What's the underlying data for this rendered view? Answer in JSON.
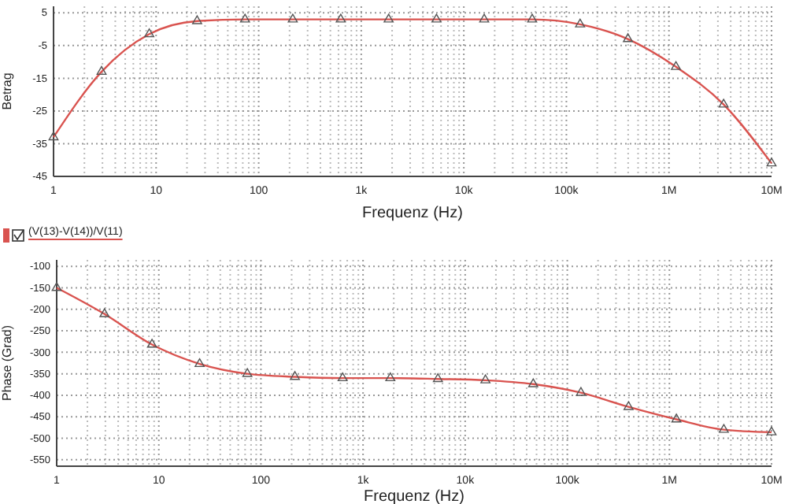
{
  "chart_data": [
    {
      "type": "line",
      "xlabel": "Frequenz (Hz)",
      "ylabel": "Betrag",
      "log": "x",
      "grid": true,
      "marker": "triangle",
      "line_style": "solid",
      "x": [
        1,
        2.94,
        8.58,
        25.1,
        73.6,
        215,
        631,
        1850,
        5410,
        15800,
        46400,
        136000,
        398000,
        1170000,
        3410000,
        10000000
      ],
      "series": [
        {
          "color": "#d9534f",
          "values": [
            -33,
            -13,
            -1.5,
            2.5,
            3,
            3,
            3,
            3,
            3,
            3,
            3,
            1.5,
            -3,
            -11.5,
            -23,
            -41
          ]
        }
      ],
      "xlim": [
        1,
        10000000
      ],
      "xticks": [
        1,
        10,
        100,
        {
          "value": 1000,
          "label": "1k"
        },
        {
          "value": 10000,
          "label": "10k"
        },
        {
          "value": 100000,
          "label": "100k"
        },
        {
          "value": 1000000,
          "label": "1M"
        },
        {
          "value": 10000000,
          "label": "10M"
        }
      ],
      "ylim": [
        -45,
        7
      ],
      "yticks": [
        5,
        -5,
        -15,
        -25,
        -35,
        -45
      ]
    },
    {
      "type": "line",
      "xlabel": "Frequenz (Hz)",
      "ylabel": "Phase (Grad)",
      "log": "x",
      "grid": true,
      "marker": "triangle",
      "line_style": "solid",
      "legend": "top left",
      "x": [
        1,
        2.94,
        8.58,
        25.1,
        73.6,
        215,
        631,
        1850,
        5410,
        15800,
        46400,
        136000,
        398000,
        1170000,
        3410000,
        10000000
      ],
      "series": [
        {
          "name": "(V(13)-V(14))/V(11)",
          "color": "#d9534f",
          "values": [
            -150,
            -211,
            -282,
            -327,
            -350,
            -357,
            -360,
            -360,
            -362,
            -365,
            -374,
            -394,
            -427,
            -456,
            -480,
            -486
          ]
        }
      ],
      "xlim": [
        1,
        10000000
      ],
      "xticks": [
        1,
        10,
        100,
        {
          "value": 1000,
          "label": "1k"
        },
        {
          "value": 10000,
          "label": "10k"
        },
        {
          "value": 100000,
          "label": "100k"
        },
        {
          "value": 1000000,
          "label": "1M"
        },
        {
          "value": 10000000,
          "label": "10M"
        }
      ],
      "ylim": [
        -565,
        -85
      ],
      "yticks": [
        -100,
        -150,
        -200,
        -250,
        -300,
        -350,
        -400,
        -450,
        -500,
        -550
      ]
    }
  ]
}
